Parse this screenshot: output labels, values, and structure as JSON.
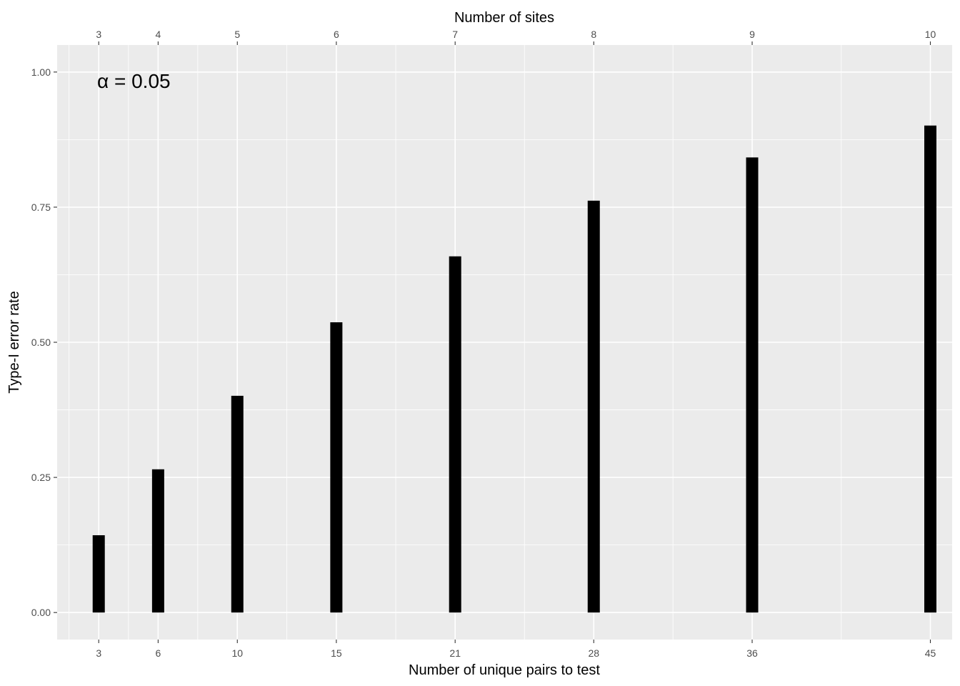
{
  "chart_data": {
    "type": "bar",
    "xlabel": "Number of unique pairs to test",
    "x2label": "Number of sites",
    "ylabel": "Type-I error rate",
    "annotation": "α = 0.05",
    "categories": [
      "3",
      "6",
      "10",
      "15",
      "21",
      "28",
      "36",
      "45"
    ],
    "x": [
      3,
      6,
      10,
      15,
      21,
      28,
      36,
      45
    ],
    "x2": [
      3,
      4,
      5,
      6,
      7,
      8,
      9,
      10
    ],
    "values": [
      0.143,
      0.265,
      0.401,
      0.537,
      0.659,
      0.762,
      0.842,
      0.901
    ],
    "xticks": [
      "3",
      "6",
      "10",
      "15",
      "21",
      "28",
      "36",
      "45"
    ],
    "x2ticks": [
      "3",
      "4",
      "5",
      "6",
      "7",
      "8",
      "9",
      "10"
    ],
    "yticks": [
      "0.00",
      "0.25",
      "0.50",
      "0.75",
      "1.00"
    ],
    "ytick_values": [
      0,
      0.25,
      0.5,
      0.75,
      1.0
    ],
    "ylim": [
      -0.05,
      1.05
    ],
    "xlim": [
      0.9,
      46.1
    ],
    "grid": true,
    "bar_color": "#000000",
    "panel_color": "#ebebeb",
    "grid_color": "#ffffff"
  }
}
